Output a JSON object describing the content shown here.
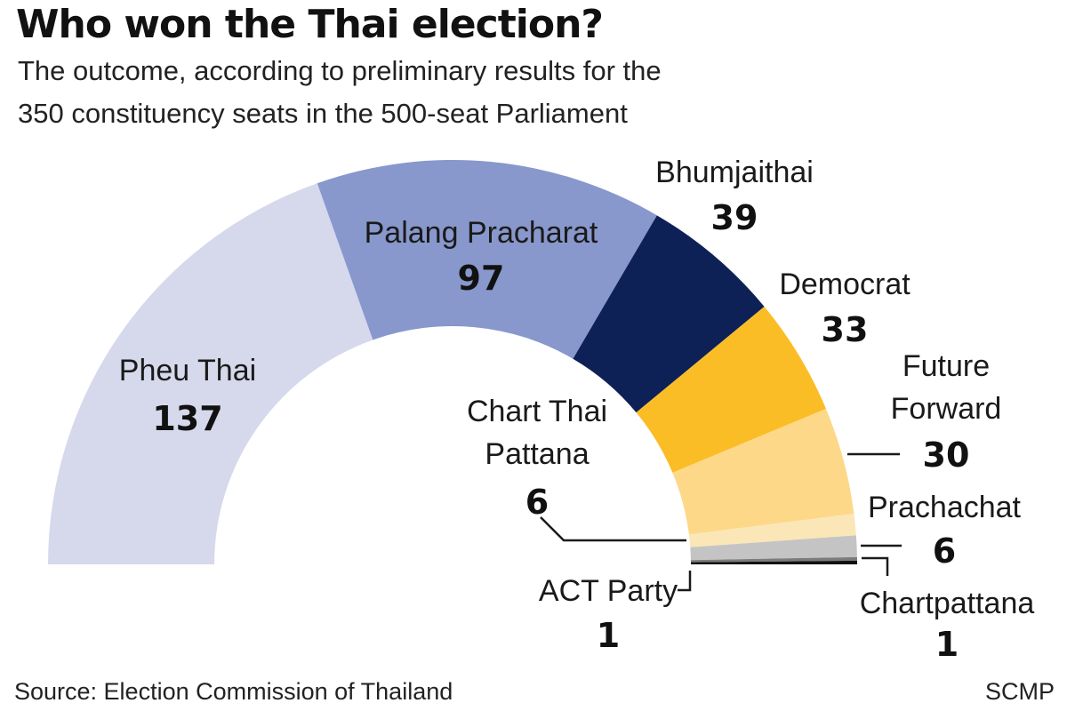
{
  "title": "Who won the Thai election?",
  "subtitle_lines": [
    "The outcome, according to preliminary results for the",
    "350 constituency seats in the 500-seat Parliament"
  ],
  "chart_data": {
    "type": "pie",
    "shape": "half-donut",
    "total": 350,
    "series": [
      {
        "name": "Pheu Thai",
        "value": 137,
        "color": "#d6d8ec"
      },
      {
        "name": "Palang Pracharat",
        "value": 97,
        "color": "#8898cc"
      },
      {
        "name": "Bhumjaithai",
        "value": 39,
        "color": "#0d2157"
      },
      {
        "name": "Democrat",
        "value": 33,
        "color": "#fbbd26"
      },
      {
        "name": "Future Forward",
        "value": 30,
        "color": "#fdd888"
      },
      {
        "name": "Chart Thai Pattana",
        "value": 6,
        "color": "#fbe6b7"
      },
      {
        "name": "Prachachat",
        "value": 6,
        "color": "#c4c4c4"
      },
      {
        "name": "ACT Party",
        "value": 1,
        "color": "#7c7c7c"
      },
      {
        "name": "Chartpattana",
        "value": 1,
        "color": "#111111"
      }
    ],
    "label_lines": {
      "Pheu Thai": [
        "Pheu Thai"
      ],
      "Palang Pracharat": [
        "Palang Pracharat"
      ],
      "Bhumjaithai": [
        "Bhumjaithai"
      ],
      "Democrat": [
        "Democrat"
      ],
      "Future Forward": [
        "Future",
        "Forward"
      ],
      "Chart Thai Pattana": [
        "Chart Thai",
        "Pattana"
      ],
      "Prachachat": [
        "Prachachat"
      ],
      "ACT Party": [
        "ACT Party"
      ],
      "Chartpattana": [
        "Chartpattana"
      ]
    }
  },
  "source": "Source: Election Commission of Thailand",
  "credit": "SCMP"
}
